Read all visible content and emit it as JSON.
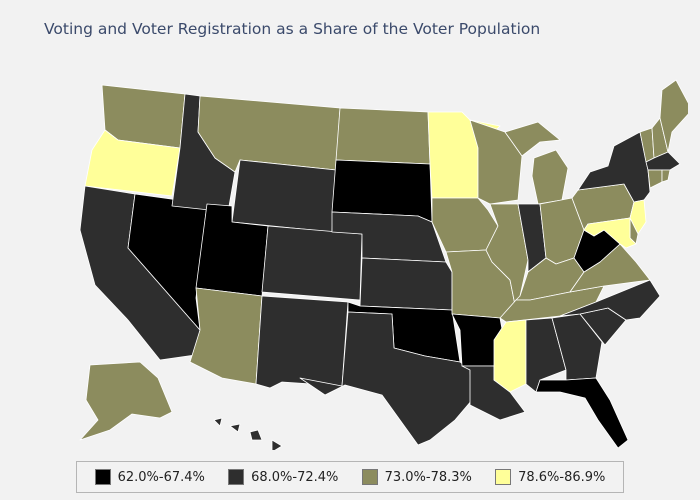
{
  "title": "Voting and Voter Registration as a Share of the Voter Population",
  "colors": {
    "bin1": "#000000",
    "bin2": "#2e2e2e",
    "bin3": "#8c8c5e",
    "bin4": "#ffff99"
  },
  "legend": [
    {
      "label": "62.0%-67.4%",
      "bin": "bin1"
    },
    {
      "label": "68.0%-72.4%",
      "bin": "bin2"
    },
    {
      "label": "73.0%-78.3%",
      "bin": "bin3"
    },
    {
      "label": "78.6%-86.9%",
      "bin": "bin4"
    }
  ],
  "states": {
    "WA": "bin3",
    "OR": "bin4",
    "CA": "bin2",
    "NV": "bin1",
    "ID": "bin2",
    "MT": "bin3",
    "WY": "bin2",
    "UT": "bin1",
    "AZ": "bin3",
    "CO": "bin2",
    "NM": "bin2",
    "ND": "bin3",
    "SD": "bin1",
    "NE": "bin2",
    "KS": "bin2",
    "OK": "bin1",
    "TX": "bin2",
    "MN": "bin4",
    "IA": "bin3",
    "MO": "bin3",
    "AR": "bin1",
    "LA": "bin2",
    "WI": "bin3",
    "IL": "bin3",
    "MI": "bin3",
    "IN": "bin2",
    "OH": "bin3",
    "KY": "bin3",
    "TN": "bin3",
    "MS": "bin4",
    "AL": "bin2",
    "GA": "bin2",
    "FL": "bin1",
    "SC": "bin2",
    "NC": "bin2",
    "VA": "bin3",
    "WV": "bin1",
    "PA": "bin3",
    "NY": "bin2",
    "VT": "bin3",
    "NH": "bin3",
    "ME": "bin3",
    "MA": "bin2",
    "CT": "bin3",
    "RI": "bin3",
    "NJ": "bin4",
    "DE": "bin3",
    "MD": "bin4",
    "AK": "bin3",
    "HI": "bin2"
  }
}
